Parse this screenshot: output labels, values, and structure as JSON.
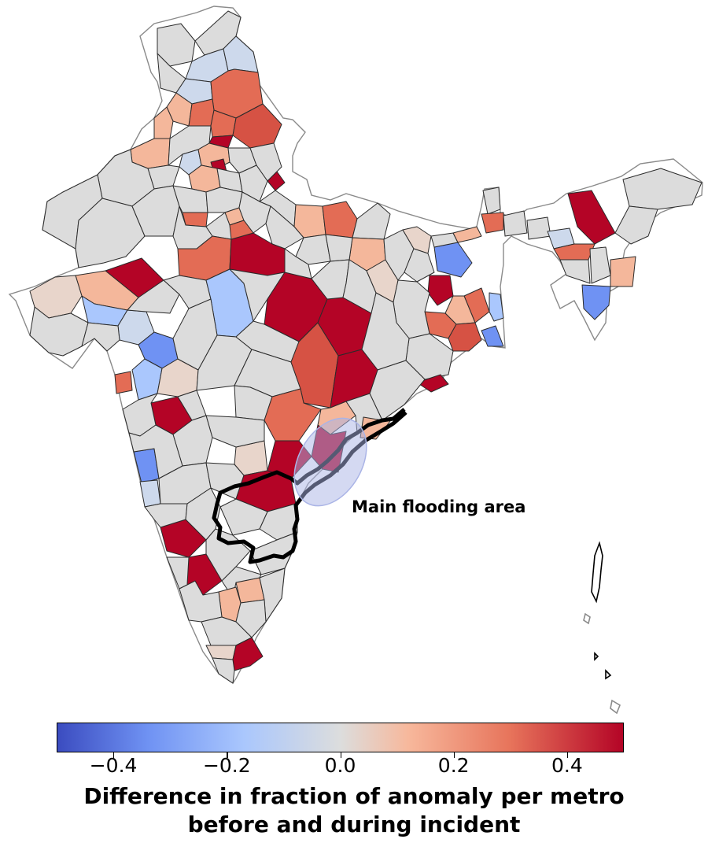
{
  "annotation": {
    "text": "Main flooding area"
  },
  "colorbar": {
    "cmap": "coolwarm",
    "vmin": -0.5,
    "vmax": 0.5,
    "ticks": [
      {
        "value": -0.4,
        "label": "−0.4"
      },
      {
        "value": -0.2,
        "label": "−0.2"
      },
      {
        "value": 0.0,
        "label": "0.0"
      },
      {
        "value": 0.2,
        "label": "0.2"
      },
      {
        "value": 0.4,
        "label": "0.4"
      }
    ],
    "title_line1": "Difference in fraction of anomaly per metro",
    "title_line2": "before and during incident"
  },
  "colors": {
    "neutral": "#dcdcdc",
    "cell_edge": "#2b2b2b",
    "outline": "#8a8a8a",
    "highlight_outline": "#000000",
    "flood_ellipse": "#aab4e6",
    "blue_strong": "#6f92f3",
    "blue_light": "#aac7fd",
    "blue_pale": "#cdd9ec",
    "salmon_pale": "#e8d5cb",
    "salmon": "#f4b79b",
    "orange_red": "#e36c55",
    "red": "#d65244",
    "red_strong": "#b40426"
  }
}
